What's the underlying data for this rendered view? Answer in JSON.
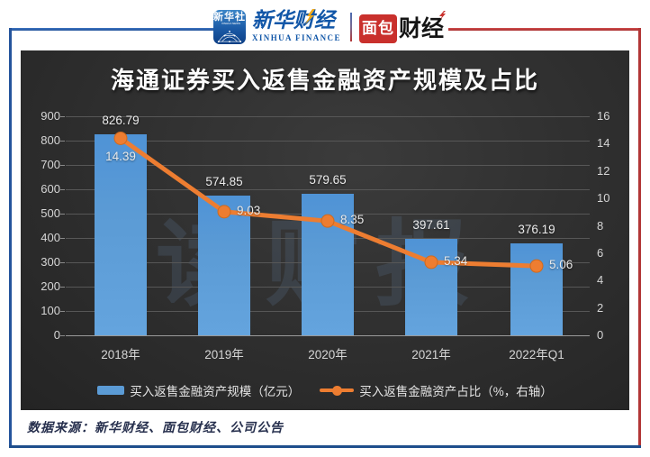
{
  "header": {
    "xinhua_news_badge": {
      "title": "新华社",
      "subtitle": "XINHUA NEWS"
    },
    "xinhua_finance": {
      "cn": "新华财经",
      "en": "XINHUA FINANCE"
    },
    "mianbao_finance": {
      "boxed": "面包",
      "rest": "财经"
    }
  },
  "chart_data": {
    "type": "bar+line",
    "title": "海通证券买入返售金融资产规模及占比",
    "categories": [
      "2018年",
      "2019年",
      "2020年",
      "2021年",
      "2022年Q1"
    ],
    "series": [
      {
        "name": "买入返售金融资产规模（亿元）",
        "type": "bar",
        "axis": "left",
        "color": "#5B9BD5",
        "values": [
          826.79,
          574.85,
          579.65,
          397.61,
          376.19
        ]
      },
      {
        "name": "买入返售金融资产占比（%，右轴）",
        "type": "line",
        "axis": "right",
        "color": "#ED7D31",
        "values": [
          14.39,
          9.03,
          8.35,
          5.34,
          5.06
        ]
      }
    ],
    "left_axis": {
      "min": 0,
      "max": 900,
      "step": 100,
      "ticks": [
        0,
        100,
        200,
        300,
        400,
        500,
        600,
        700,
        800,
        900
      ]
    },
    "right_axis": {
      "min": 0,
      "max": 16,
      "step": 2,
      "ticks": [
        0,
        2,
        4,
        6,
        8,
        10,
        12,
        14,
        16
      ]
    },
    "grid": true,
    "legend_position": "bottom",
    "watermark": "读财报"
  },
  "footer": {
    "source": "数据来源：新华财经、面包财经、公司公告"
  },
  "colors": {
    "bar": "#5B9BD5",
    "line": "#ED7D31",
    "frame_blue": "#24549C",
    "frame_red": "#B23636",
    "panel_background": "#2E2E2E",
    "axis_text": "#D6D6D6",
    "title_text": "#FDFDFD"
  }
}
